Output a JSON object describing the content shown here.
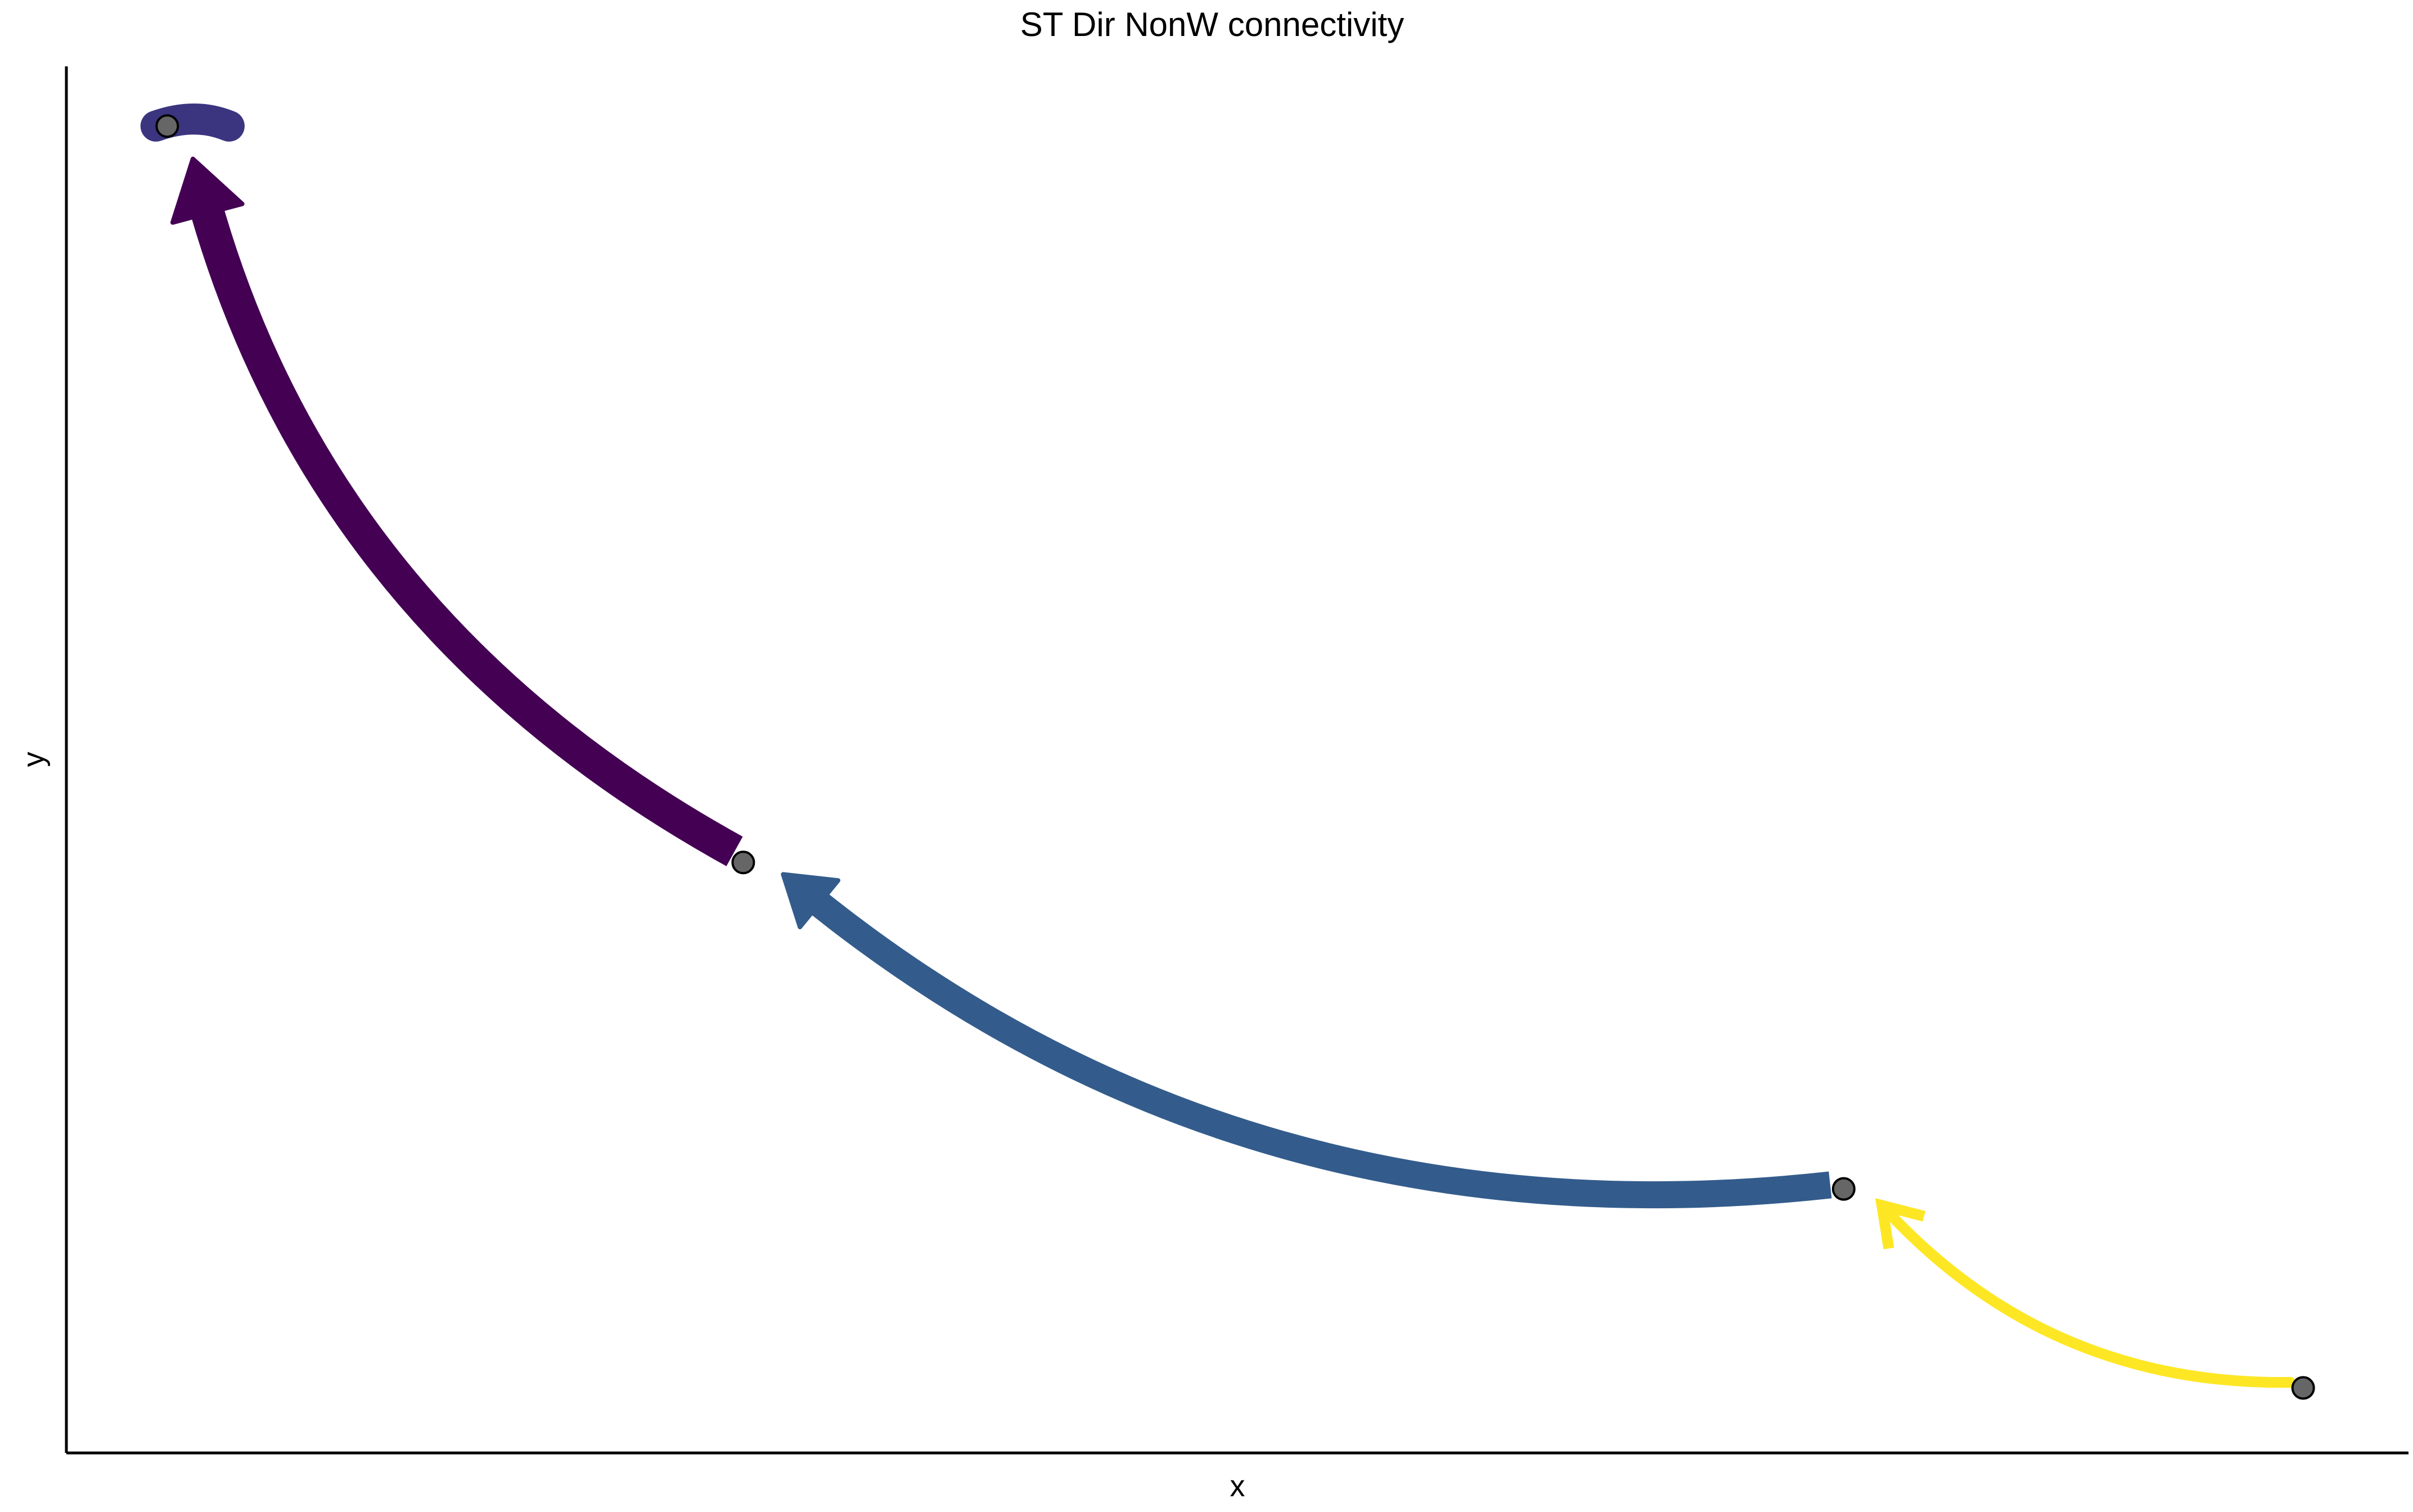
{
  "chart_data": {
    "type": "network",
    "title": "ST Dir NonW connectivity",
    "xlabel": "x",
    "ylabel": "y",
    "grid": false,
    "legend": "none",
    "axis_ticks": false,
    "nodes": [
      {
        "id": "n1",
        "x": 0.0,
        "y": 1.0
      },
      {
        "id": "n2",
        "x": 0.257,
        "y": 0.445
      },
      {
        "id": "n3",
        "x": 0.748,
        "y": 0.199
      },
      {
        "id": "n4",
        "x": 0.953,
        "y": 0.049
      }
    ],
    "edges": [
      {
        "from": "n4",
        "to": "n3",
        "weight": 0.15,
        "color": "#FDE725"
      },
      {
        "from": "n3",
        "to": "n2",
        "weight": 0.75,
        "color": "#335C8C"
      },
      {
        "from": "n2",
        "to": "n1",
        "weight": 1.0,
        "color": "#440154"
      },
      {
        "from": "n1",
        "to": "n1",
        "weight": 0.9,
        "color": "#3B3580"
      }
    ],
    "xlim": [
      -0.045,
      1.0
    ],
    "ylim": [
      0.0,
      1.045
    ],
    "node_color": "#666666"
  }
}
